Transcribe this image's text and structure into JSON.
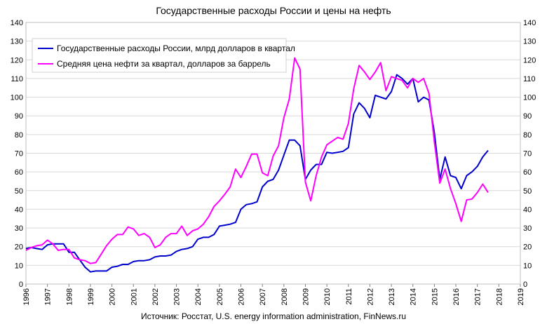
{
  "chart_data": {
    "type": "line",
    "title": "Государственные расходы России и цены на нефть",
    "source": "Источник: Росстат, U.S. energy information administration, FinNews.ru",
    "xlabel": "",
    "ylabel": "",
    "ylim": [
      0,
      140
    ],
    "xlim": [
      1996,
      2019
    ],
    "y_ticks": [
      "0",
      "10",
      "20",
      "30",
      "40",
      "50",
      "60",
      "70",
      "80",
      "90",
      "100",
      "110",
      "120",
      "130",
      "140"
    ],
    "x_ticks": [
      "1996",
      "1997",
      "1998",
      "1999",
      "2000",
      "2001",
      "2002",
      "2003",
      "2004",
      "2005",
      "2006",
      "2007",
      "2008",
      "2009",
      "2010",
      "2011",
      "2012",
      "2013",
      "2014",
      "2015",
      "2016",
      "2017",
      "2018",
      "2019"
    ],
    "grid": true,
    "legend_position": "top-left",
    "series": [
      {
        "name": "Государственные расходы России, млрд долларов в квартал",
        "color": "#0000cc",
        "x": [
          1996.0,
          1996.25,
          1996.5,
          1996.75,
          1997.0,
          1997.25,
          1997.5,
          1997.75,
          1998.0,
          1998.25,
          1998.5,
          1998.75,
          1999.0,
          1999.25,
          1999.5,
          1999.75,
          2000.0,
          2000.25,
          2000.5,
          2000.75,
          2001.0,
          2001.25,
          2001.5,
          2001.75,
          2002.0,
          2002.25,
          2002.5,
          2002.75,
          2003.0,
          2003.25,
          2003.5,
          2003.75,
          2004.0,
          2004.25,
          2004.5,
          2004.75,
          2005.0,
          2005.25,
          2005.5,
          2005.75,
          2006.0,
          2006.25,
          2006.5,
          2006.75,
          2007.0,
          2007.25,
          2007.5,
          2007.75,
          2008.0,
          2008.25,
          2008.5,
          2008.75,
          2009.0,
          2009.25,
          2009.5,
          2009.75,
          2010.0,
          2010.25,
          2010.5,
          2010.75,
          2011.0,
          2011.25,
          2011.5,
          2011.75,
          2012.0,
          2012.25,
          2012.5,
          2012.75,
          2013.0,
          2013.25,
          2013.5,
          2013.75,
          2014.0,
          2014.25,
          2014.5,
          2014.75,
          2015.0,
          2015.25,
          2015.5,
          2015.75,
          2016.0,
          2016.25,
          2016.5,
          2016.75,
          2017.0,
          2017.25,
          2017.5
        ],
        "values": [
          19,
          19.5,
          19,
          18.5,
          21,
          21.5,
          21.5,
          21.5,
          17,
          17,
          13,
          9,
          6.5,
          7,
          7,
          7,
          9,
          9.5,
          10.5,
          10.5,
          12,
          12.5,
          12.5,
          13,
          14.5,
          15,
          15,
          15.5,
          17.5,
          18.5,
          19,
          20,
          24,
          25,
          25,
          26.5,
          31,
          31.5,
          32,
          33,
          40,
          42.5,
          43,
          44,
          52,
          55,
          56,
          61,
          69,
          77,
          77,
          74,
          56,
          61,
          64,
          64,
          70.5,
          70,
          70.5,
          71,
          73,
          91,
          97,
          94,
          89,
          101,
          100,
          99,
          103,
          112,
          110,
          107,
          110,
          97.5,
          100,
          98.5,
          81,
          56,
          68,
          58,
          57,
          51,
          58,
          60,
          63,
          68,
          71.5
        ]
      },
      {
        "name": "Средняя цена нефти за квартал, долларов за баррель",
        "color": "#ff00ff",
        "x": [
          1996.0,
          1996.25,
          1996.5,
          1996.75,
          1997.0,
          1997.25,
          1997.5,
          1997.75,
          1998.0,
          1998.25,
          1998.5,
          1998.75,
          1999.0,
          1999.25,
          1999.5,
          1999.75,
          2000.0,
          2000.25,
          2000.5,
          2000.75,
          2001.0,
          2001.25,
          2001.5,
          2001.75,
          2002.0,
          2002.25,
          2002.5,
          2002.75,
          2003.0,
          2003.25,
          2003.5,
          2003.75,
          2004.0,
          2004.25,
          2004.5,
          2004.75,
          2005.0,
          2005.25,
          2005.5,
          2005.75,
          2006.0,
          2006.25,
          2006.5,
          2006.75,
          2007.0,
          2007.25,
          2007.5,
          2007.75,
          2008.0,
          2008.25,
          2008.5,
          2008.75,
          2009.0,
          2009.25,
          2009.5,
          2009.75,
          2010.0,
          2010.25,
          2010.5,
          2010.75,
          2011.0,
          2011.25,
          2011.5,
          2011.75,
          2012.0,
          2012.25,
          2012.5,
          2012.75,
          2013.0,
          2013.25,
          2013.5,
          2013.75,
          2014.0,
          2014.25,
          2014.5,
          2014.75,
          2015.0,
          2015.25,
          2015.5,
          2015.75,
          2016.0,
          2016.25,
          2016.5,
          2016.75,
          2017.0,
          2017.25,
          2017.5
        ],
        "values": [
          18,
          19.5,
          20.5,
          21,
          23.5,
          21.5,
          18,
          18.5,
          18.5,
          14,
          13,
          12.5,
          11,
          11.5,
          16,
          20.5,
          24,
          26.5,
          26.5,
          30.5,
          29.5,
          26,
          27,
          25,
          19.5,
          21,
          25,
          27,
          27,
          31,
          26,
          28.5,
          29.5,
          32,
          36,
          41.5,
          44.5,
          48,
          52,
          61.5,
          57,
          63,
          69.5,
          69.5,
          59.5,
          58,
          68.5,
          74,
          89,
          99,
          121,
          115,
          54.5,
          44.5,
          58,
          68,
          74.5,
          76.5,
          78.5,
          77.5,
          86,
          104.5,
          117,
          113.5,
          109.5,
          113.5,
          118.5,
          103.5,
          111,
          110,
          109,
          105,
          110,
          108,
          110,
          102,
          76,
          54,
          61.5,
          51,
          43,
          33.5,
          45,
          45.5,
          49,
          53.5,
          49
        ]
      }
    ]
  }
}
